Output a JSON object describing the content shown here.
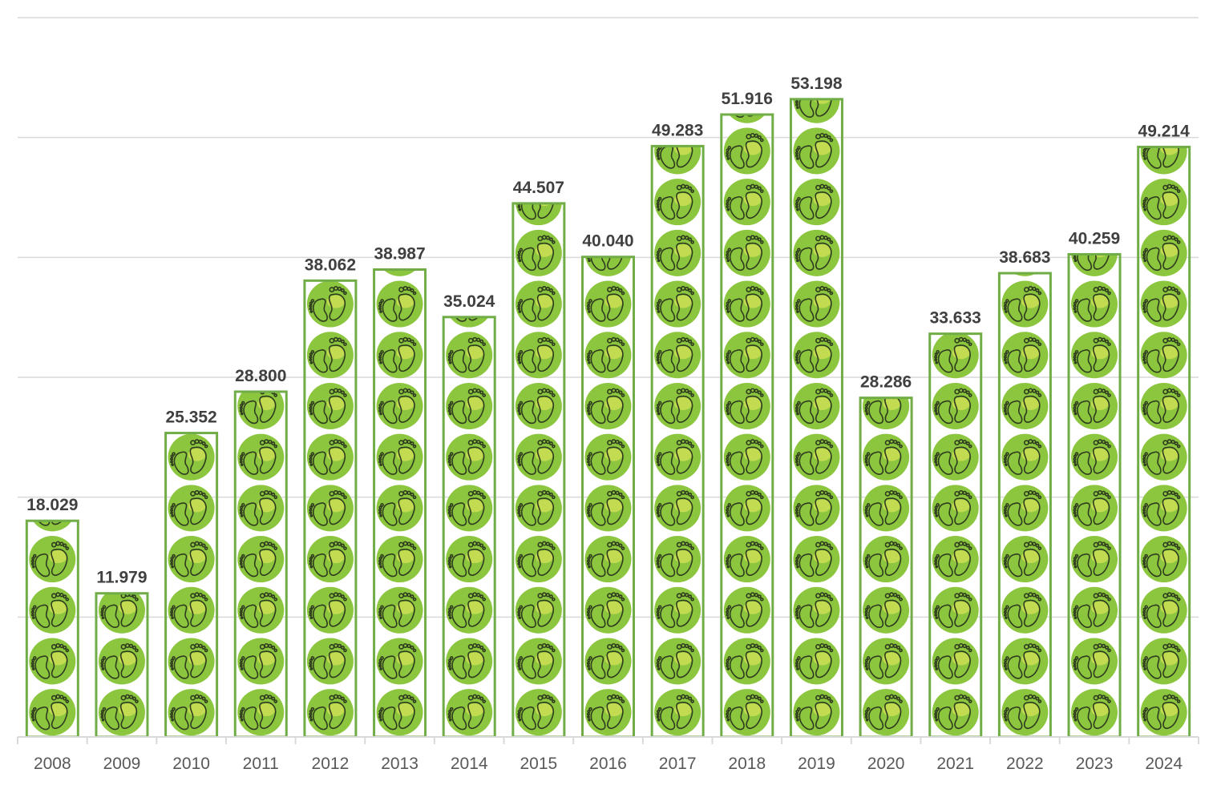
{
  "chart_data": {
    "type": "bar",
    "title": "",
    "xlabel": "",
    "ylabel": "",
    "categories": [
      "2008",
      "2009",
      "2010",
      "2011",
      "2012",
      "2013",
      "2014",
      "2015",
      "2016",
      "2017",
      "2018",
      "2019",
      "2020",
      "2021",
      "2022",
      "2023",
      "2024"
    ],
    "values": [
      18029,
      11979,
      25352,
      28800,
      38062,
      38987,
      35024,
      44507,
      40040,
      49283,
      51916,
      53198,
      28286,
      33633,
      38683,
      40259,
      49214
    ],
    "value_labels": [
      "18.029",
      "11.979",
      "25.352",
      "28.800",
      "38.062",
      "38.987",
      "35.024",
      "44.507",
      "40.040",
      "49.283",
      "51.916",
      "53.198",
      "28.286",
      "33.633",
      "38.683",
      "40.259",
      "49.214"
    ],
    "ylim": [
      0,
      60000
    ],
    "gridline_step": 10000,
    "grid": true,
    "legend": "none",
    "fill_pattern": "footprint-icon",
    "colors": {
      "bar_frame": "#70ad47",
      "icon_fill": "#8cc63f",
      "icon_highlight": "#d4e157",
      "icon_stroke": "#2e3b1e",
      "gridline": "#d9d9d9",
      "label": "#404040",
      "tick": "#595959"
    }
  }
}
